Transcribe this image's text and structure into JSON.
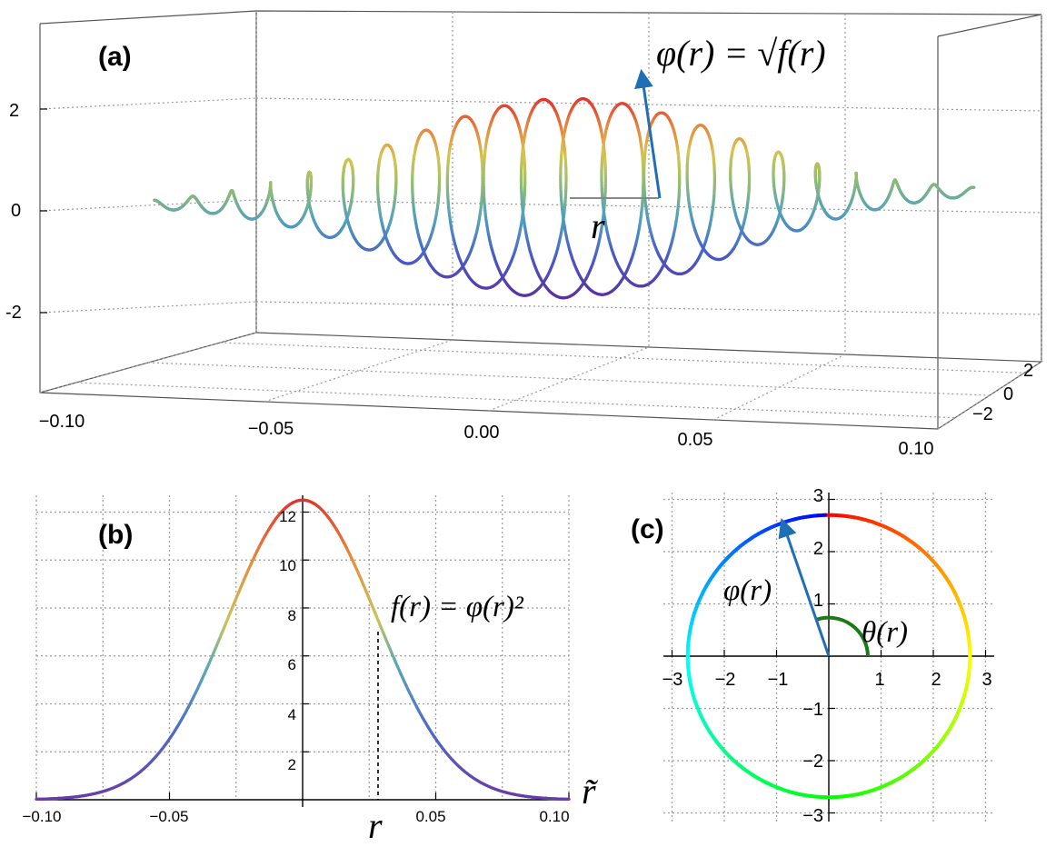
{
  "panels": {
    "a": {
      "label": "(a)",
      "annotation": "φ(r) = √f(r)",
      "r_label": "r"
    },
    "b": {
      "label": "(b)",
      "annotation": "f(r) = φ(r)²",
      "r_label": "r",
      "r_tilde_label": "r̃"
    },
    "c": {
      "label": "(c)",
      "phi_label": "φ(r)",
      "theta_label": "θ(r)"
    }
  },
  "chart_data": [
    {
      "panel": "a",
      "type": "line",
      "dimension": "3d",
      "description_of_curve": "helix x = r, (y, z) = φ(r)·(cos θ(r), sin θ(r)) with φ(r) = √f(r)",
      "x_ticks": [
        "−0.10",
        "−0.05",
        "0.00",
        "0.05",
        "0.10"
      ],
      "y_ticks": [
        "2",
        "0",
        "−2"
      ],
      "z_ticks": [
        "2",
        "0",
        "-2"
      ],
      "xlim": [
        -0.1,
        0.1
      ],
      "zlim": [
        -3.5,
        3.5
      ],
      "turns": 21,
      "amplitude_max": 3.54,
      "r_marker": 0.03,
      "grid": true
    },
    {
      "panel": "b",
      "type": "line",
      "x_ticks": [
        "−0.10",
        "−0.05",
        "0.05",
        "0.10"
      ],
      "y_ticks": [
        "2",
        "4",
        "6",
        "8",
        "10",
        "12"
      ],
      "xlim": [
        -0.1,
        0.1
      ],
      "ylim": [
        0,
        12.7
      ],
      "x": [
        -0.1,
        -0.09,
        -0.08,
        -0.07,
        -0.06,
        -0.05,
        -0.04,
        -0.03,
        -0.02,
        -0.01,
        0.0,
        0.01,
        0.02,
        0.03,
        0.04,
        0.05,
        0.06,
        0.07,
        0.08,
        0.09,
        0.1
      ],
      "y": [
        0.15,
        0.35,
        0.75,
        1.45,
        2.6,
        4.15,
        6.0,
        8.05,
        10.0,
        11.6,
        12.5,
        11.6,
        10.0,
        7.2,
        5.7,
        4.15,
        2.6,
        1.45,
        0.75,
        0.35,
        0.15
      ],
      "r_marker": 0.03,
      "grid": true
    },
    {
      "panel": "c",
      "type": "line",
      "x_ticks": [
        "−3",
        "−2",
        "−1",
        "0",
        "1",
        "2",
        "3"
      ],
      "y_ticks": [
        "3",
        "2",
        "1",
        "−1",
        "−2",
        "−3"
      ],
      "xlim": [
        -3,
        3
      ],
      "ylim": [
        -3,
        3
      ],
      "radius": 2.7,
      "phi_arrow_angle_deg": 110,
      "grid": true
    }
  ]
}
